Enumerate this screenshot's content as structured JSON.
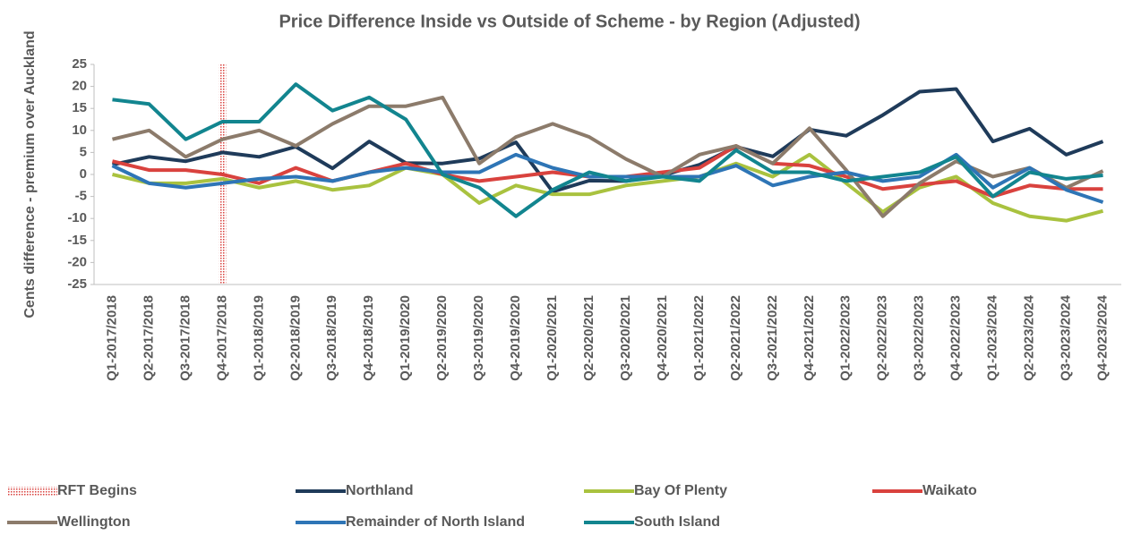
{
  "chart_data": {
    "type": "line",
    "title": "Price Difference Inside vs Outside of Scheme - by Region (Adjusted)",
    "y_label": "Cents difference - premium over Auckland",
    "categories": [
      "Q1-2017/2018",
      "Q2-2017/2018",
      "Q3-2017/2018",
      "Q4-2017/2018",
      "Q1-2018/2019",
      "Q2-2018/2019",
      "Q3-2018/2019",
      "Q4-2018/2019",
      "Q1-2019/2020",
      "Q2-2019/2020",
      "Q3-2019/2020",
      "Q4-2019/2020",
      "Q1-2020/2021",
      "Q2-2020/2021",
      "Q3-2020/2021",
      "Q4-2020/2021",
      "Q1-2021/2022",
      "Q2-2021/2022",
      "Q3-2021/2022",
      "Q4-2021/2022",
      "Q1-2022/2023",
      "Q2-2022/2023",
      "Q3-2022/2023",
      "Q4-2022/2023",
      "Q1-2023/2024",
      "Q2-2023/2024",
      "Q3-2023/2024",
      "Q4-2023/2024"
    ],
    "markers": [
      {
        "name": "RFT Begins",
        "x": "Q4-2017/2018",
        "color": "#c00000"
      }
    ],
    "series": [
      {
        "name": "Northland",
        "color": "#1f3b5a",
        "values": [
          2.2,
          4,
          3,
          5,
          4,
          6.3,
          1.4,
          7.5,
          2.6,
          2.5,
          3.6,
          7.3,
          -3.9,
          -1.4,
          -1.5,
          -0.2,
          2.2,
          6.3,
          4.1,
          10.2,
          8.8,
          13.5,
          18.8,
          19.4,
          7.5,
          10.4,
          4.5,
          7.5
        ]
      },
      {
        "name": "Bay Of Plenty",
        "color": "#a9c23f",
        "values": [
          0,
          -2,
          -2,
          -1,
          -3,
          -1.5,
          -3.5,
          -2.5,
          1.5,
          0,
          -6.5,
          -2.5,
          -4.5,
          -4.5,
          -2.5,
          -1.5,
          -0.5,
          2.5,
          -0.5,
          4.5,
          -2,
          -8.5,
          -3,
          -0.5,
          -6.5,
          -9.5,
          -10.5,
          -8.3
        ]
      },
      {
        "name": "Waikato",
        "color": "#d9423e",
        "values": [
          3,
          1,
          1,
          0,
          -2,
          1.5,
          -1.5,
          0.5,
          2.5,
          0,
          -1.5,
          -0.5,
          0.5,
          -0.5,
          -0.5,
          0.5,
          1.5,
          6.5,
          2.5,
          2,
          -0.5,
          -3.3,
          -2.3,
          -1.5,
          -5,
          -2.5,
          -3.3,
          -3.3
        ]
      },
      {
        "name": "Wellington",
        "color": "#8c7b6b",
        "values": [
          8,
          10,
          4,
          8,
          10,
          6.5,
          11.5,
          15.5,
          15.5,
          17.5,
          2.5,
          8.5,
          11.5,
          8.5,
          3.5,
          -0.5,
          4.5,
          6.5,
          2.5,
          10.5,
          1,
          -9.5,
          -2,
          3,
          -0.5,
          1.5,
          -3,
          0.8
        ]
      },
      {
        "name": "Remainder of North Island",
        "color": "#2e75b6",
        "values": [
          2,
          -2,
          -3,
          -2,
          -1,
          -0.5,
          -1.5,
          0.5,
          1.5,
          0.5,
          0.5,
          4.5,
          1.5,
          -0.5,
          -0.5,
          -0.5,
          -0.5,
          2,
          -2.5,
          -0.5,
          0.5,
          -1.5,
          -0.5,
          4.5,
          -3,
          1.5,
          -3.5,
          -6.3
        ]
      },
      {
        "name": "South Island",
        "color": "#12858f",
        "values": [
          17,
          16,
          8,
          12,
          12,
          20.5,
          14.5,
          17.5,
          12.5,
          0,
          -3,
          -9.5,
          -3.5,
          0.5,
          -1.5,
          -0.5,
          -1.5,
          5.5,
          0.5,
          0.5,
          -1.5,
          -0.5,
          0.5,
          4,
          -5,
          0.5,
          -1,
          -0.2
        ]
      }
    ],
    "ylim": [
      -25,
      25
    ],
    "yticks": [
      25,
      20,
      15,
      10,
      5,
      0,
      -5,
      -10,
      -15,
      -20,
      -25
    ],
    "grid": false,
    "legend": "bottom"
  }
}
